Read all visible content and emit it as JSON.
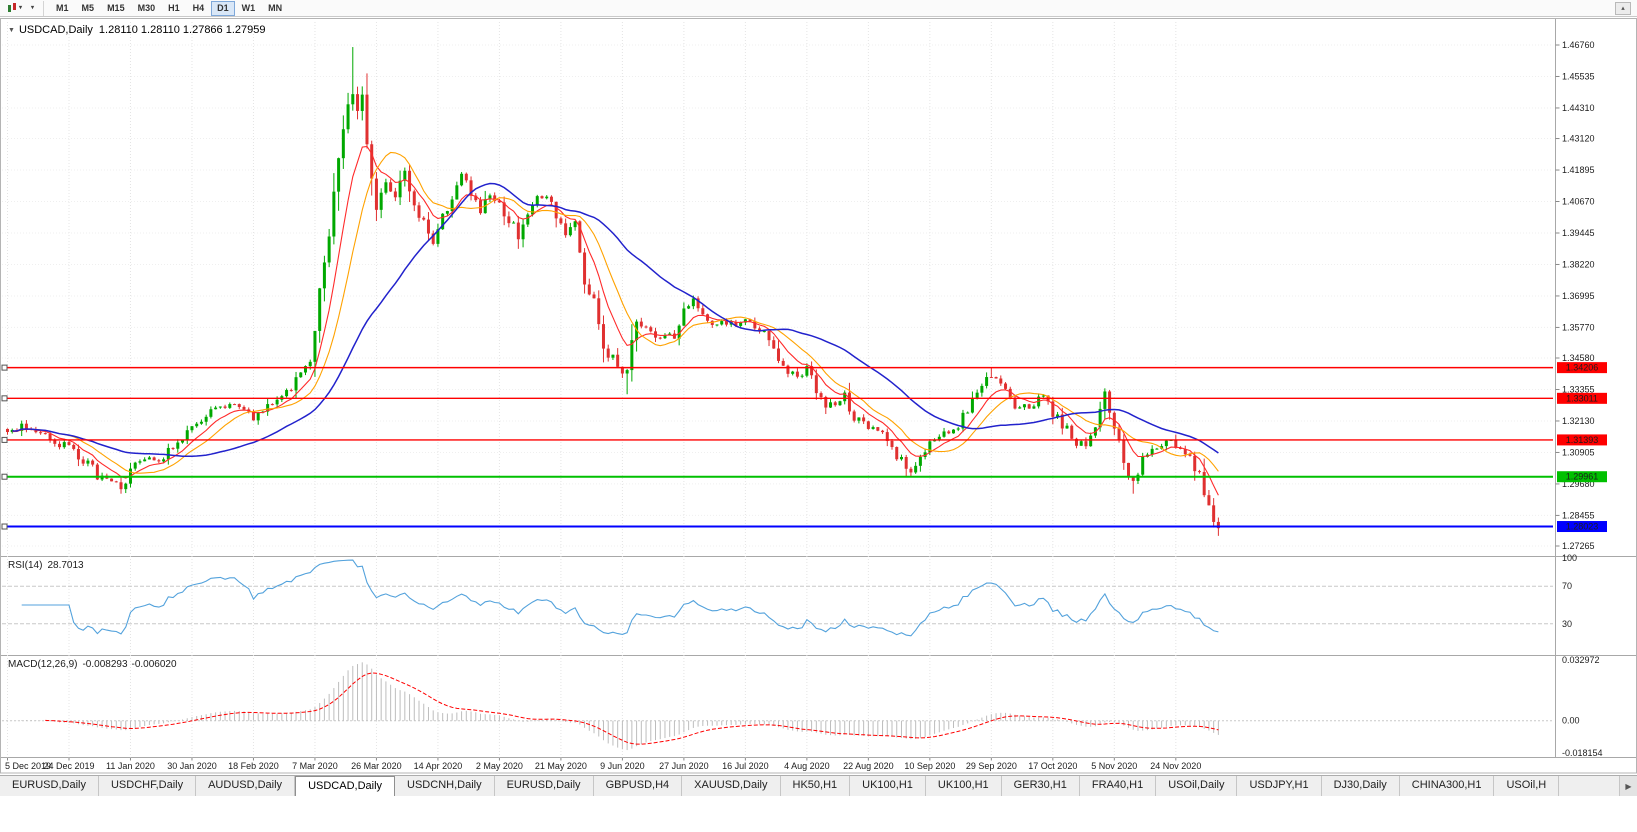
{
  "toolbar": {
    "timeframes": [
      "M1",
      "M5",
      "M15",
      "M30",
      "H1",
      "H4",
      "D1",
      "W1",
      "MN"
    ],
    "active_timeframe": "D1"
  },
  "icons": {
    "dropdown": "▾",
    "scroll_up": "▴",
    "title_marker": "▼",
    "tab_scroll_right": "▶"
  },
  "chart_data": {
    "type": "candlestick",
    "title": "USDCAD,Daily",
    "ohlc_text": "1.28110 1.28110 1.27866 1.27959",
    "final_close": 1.27959,
    "total_bars": 257,
    "bars_per_label": 13,
    "x_labels": [
      "5 Dec 2019",
      "24 Dec 2019",
      "11 Jan 2020",
      "30 Jan 2020",
      "18 Feb 2020",
      "7 Mar 2020",
      "26 Mar 2020",
      "14 Apr 2020",
      "2 May 2020",
      "21 May 2020",
      "9 Jun 2020",
      "27 Jun 2020",
      "16 Jul 2020",
      "4 Aug 2020",
      "22 Aug 2020",
      "10 Sep 2020",
      "29 Sep 2020",
      "17 Oct 2020",
      "5 Nov 2020",
      "24 Nov 2020"
    ],
    "price_axis_labels": [
      "1.46760",
      "1.45535",
      "1.44310",
      "1.43120",
      "1.41895",
      "1.40670",
      "1.39445",
      "1.38220",
      "1.36995",
      "1.35770",
      "1.34580",
      "1.33355",
      "1.32130",
      "1.30905",
      "1.29680",
      "1.28455",
      "1.27265"
    ],
    "up_color": "#00A800",
    "down_color": "#E03030",
    "close_keypoints": [
      [
        0,
        1.317
      ],
      [
        4,
        1.3195
      ],
      [
        8,
        1.3155
      ],
      [
        12,
        1.312
      ],
      [
        16,
        1.306
      ],
      [
        19,
        1.3005
      ],
      [
        22,
        1.2968
      ],
      [
        24,
        1.2955
      ],
      [
        27,
        1.304
      ],
      [
        31,
        1.3062
      ],
      [
        34,
        1.3095
      ],
      [
        38,
        1.316
      ],
      [
        41,
        1.323
      ],
      [
        44,
        1.3258
      ],
      [
        48,
        1.3272
      ],
      [
        52,
        1.3228
      ],
      [
        55,
        1.3268
      ],
      [
        58,
        1.331
      ],
      [
        62,
        1.3395
      ],
      [
        64,
        1.3425
      ],
      [
        66,
        1.373
      ],
      [
        68,
        1.394
      ],
      [
        70,
        1.425
      ],
      [
        72,
        1.446
      ],
      [
        73,
        1.45
      ],
      [
        74,
        1.444
      ],
      [
        75,
        1.448
      ],
      [
        76,
        1.431
      ],
      [
        78,
        1.403
      ],
      [
        80,
        1.415
      ],
      [
        82,
        1.408
      ],
      [
        84,
        1.418
      ],
      [
        86,
        1.406
      ],
      [
        88,
        1.398
      ],
      [
        90,
        1.392
      ],
      [
        92,
        1.401
      ],
      [
        94,
        1.408
      ],
      [
        96,
        1.417
      ],
      [
        98,
        1.409
      ],
      [
        100,
        1.402
      ],
      [
        102,
        1.409
      ],
      [
        104,
        1.407
      ],
      [
        106,
        1.399
      ],
      [
        108,
        1.394
      ],
      [
        110,
        1.402
      ],
      [
        112,
        1.41
      ],
      [
        114,
        1.409
      ],
      [
        116,
        1.4
      ],
      [
        118,
        1.393
      ],
      [
        120,
        1.398
      ],
      [
        122,
        1.375
      ],
      [
        124,
        1.368
      ],
      [
        126,
        1.351
      ],
      [
        128,
        1.345
      ],
      [
        130,
        1.339
      ],
      [
        131,
        1.342
      ],
      [
        133,
        1.362
      ],
      [
        135,
        1.356
      ],
      [
        137,
        1.353
      ],
      [
        139,
        1.356
      ],
      [
        141,
        1.353
      ],
      [
        143,
        1.364
      ],
      [
        145,
        1.368
      ],
      [
        147,
        1.362
      ],
      [
        149,
        1.358
      ],
      [
        151,
        1.361
      ],
      [
        153,
        1.358
      ],
      [
        155,
        1.361
      ],
      [
        157,
        1.359
      ],
      [
        159,
        1.356
      ],
      [
        161,
        1.353
      ],
      [
        163,
        1.346
      ],
      [
        165,
        1.341
      ],
      [
        167,
        1.339
      ],
      [
        169,
        1.341
      ],
      [
        171,
        1.333
      ],
      [
        173,
        1.326
      ],
      [
        175,
        1.329
      ],
      [
        177,
        1.331
      ],
      [
        179,
        1.323
      ],
      [
        181,
        1.32
      ],
      [
        183,
        1.318
      ],
      [
        185,
        1.316
      ],
      [
        187,
        1.31
      ],
      [
        189,
        1.307
      ],
      [
        191,
        1.3005
      ],
      [
        193,
        1.309
      ],
      [
        195,
        1.313
      ],
      [
        197,
        1.316
      ],
      [
        199,
        1.3175
      ],
      [
        201,
        1.32
      ],
      [
        203,
        1.326
      ],
      [
        205,
        1.332
      ],
      [
        207,
        1.337
      ],
      [
        209,
        1.3385
      ],
      [
        211,
        1.333
      ],
      [
        213,
        1.328
      ],
      [
        215,
        1.327
      ],
      [
        217,
        1.329
      ],
      [
        219,
        1.3305
      ],
      [
        221,
        1.325
      ],
      [
        223,
        1.32
      ],
      [
        225,
        1.315
      ],
      [
        227,
        1.312
      ],
      [
        229,
        1.315
      ],
      [
        231,
        1.325
      ],
      [
        232,
        1.3325
      ],
      [
        233,
        1.3245
      ],
      [
        235,
        1.314
      ],
      [
        237,
        1.3
      ],
      [
        238,
        1.2968
      ],
      [
        240,
        1.306
      ],
      [
        242,
        1.311
      ],
      [
        244,
        1.3132
      ],
      [
        246,
        1.312
      ],
      [
        248,
        1.31
      ],
      [
        250,
        1.3062
      ],
      [
        251,
        1.303
      ],
      [
        252,
        1.2995
      ],
      [
        253,
        1.2935
      ],
      [
        254,
        1.287
      ],
      [
        255,
        1.282
      ],
      [
        256,
        1.27959
      ]
    ],
    "high_overrides": [
      [
        73,
        1.4668
      ],
      [
        208,
        1.3421
      ],
      [
        232,
        1.334
      ]
    ],
    "low_overrides": [
      [
        24,
        1.293
      ],
      [
        131,
        1.3317
      ],
      [
        191,
        1.2994
      ],
      [
        238,
        1.293
      ],
      [
        256,
        1.2766
      ]
    ],
    "hlines": [
      {
        "price": 1.34206,
        "label": "1.34206",
        "color": "#FF0000",
        "width": 1.4
      },
      {
        "price": 1.33011,
        "label": "1.33011",
        "color": "#FF0000",
        "width": 1.4
      },
      {
        "price": 1.31393,
        "label": "1.31393",
        "color": "#FF0000",
        "width": 1.4
      },
      {
        "price": 1.29961,
        "label": "1.29961",
        "color": "#00C000",
        "width": 2
      },
      {
        "price": 1.28023,
        "label": "1.28023",
        "color": "#0000FF",
        "width": 2
      }
    ],
    "moving_averages": [
      {
        "name": "ma-fast",
        "period": 8,
        "method": "ema",
        "color": "#FF2A2A",
        "width": 1.1
      },
      {
        "name": "ma-mid",
        "period": 13,
        "method": "sma",
        "color": "#FFA200",
        "width": 1.1
      },
      {
        "name": "ma-slow",
        "period": 34,
        "method": "sma",
        "color": "#2222CC",
        "width": 1.5
      }
    ],
    "rsi": {
      "name": "RSI(14)",
      "value": "28.7013",
      "period": 14,
      "color": "#53A2DC",
      "levels": [
        "100",
        "70",
        "30"
      ],
      "level_lines": [
        70,
        30
      ]
    },
    "macd": {
      "name": "MACD(12,26,9)",
      "main_value": "-0.008293",
      "signal_value": "-0.006020",
      "fast": 12,
      "slow": 26,
      "signal": 9,
      "hist_color": "#BDBDBD",
      "signal_color": "#FF0000",
      "axis_max_label": "0.032972",
      "axis_zero_label": "0.00",
      "axis_min_label": "-0.018154"
    }
  },
  "tabs": {
    "items": [
      "EURUSD,Daily",
      "USDCHF,Daily",
      "AUDUSD,Daily",
      "USDCAD,Daily",
      "USDCNH,Daily",
      "EURUSD,Daily",
      "GBPUSD,H4",
      "XAUUSD,Daily",
      "HK50,H1",
      "UK100,H1",
      "UK100,H1",
      "GER30,H1",
      "FRA40,H1",
      "USOil,Daily",
      "USDJPY,H1",
      "DJ30,Daily",
      "CHINA300,H1",
      "USOil,H"
    ],
    "active_index": 3,
    "scroll_icon": "▶"
  }
}
